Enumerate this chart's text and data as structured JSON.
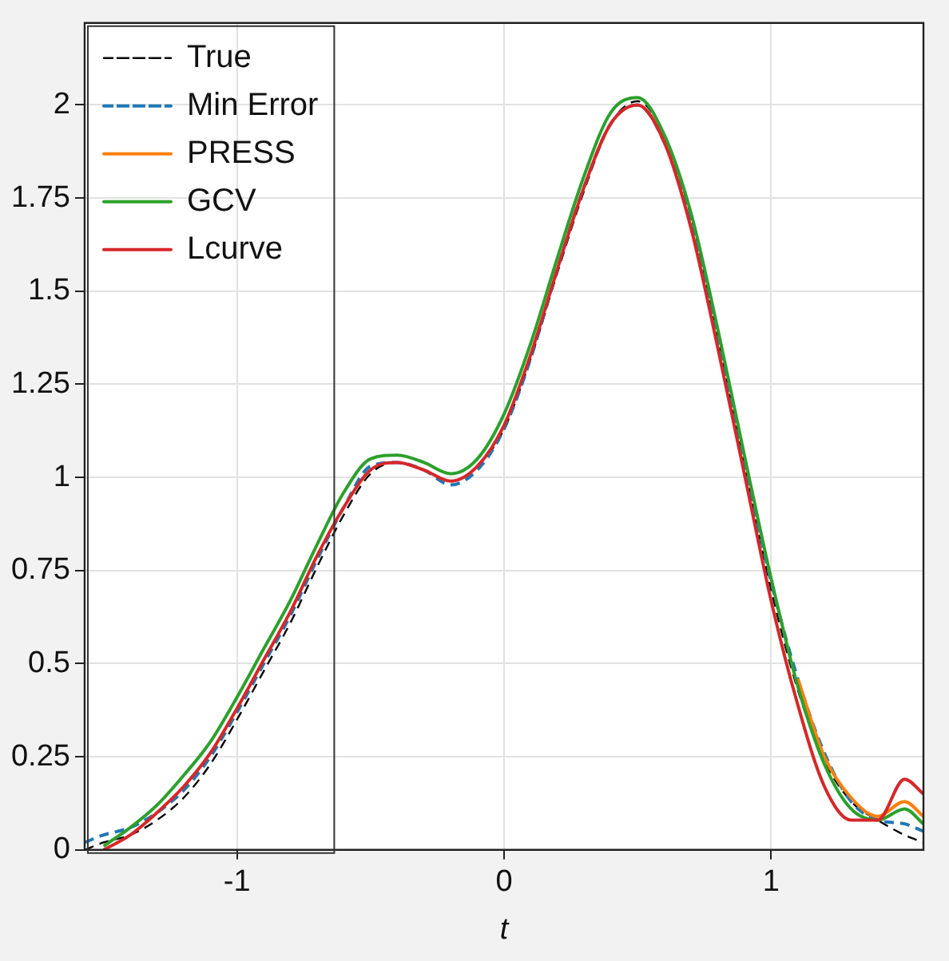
{
  "chart_data": {
    "type": "line",
    "xlabel": "t",
    "x": [
      -1.5708,
      -1.5,
      -1.4,
      -1.3,
      -1.2,
      -1.1,
      -1.0,
      -0.9,
      -0.8,
      -0.7,
      -0.6,
      -0.5,
      -0.4,
      -0.3,
      -0.2,
      -0.1,
      0.0,
      0.1,
      0.2,
      0.3,
      0.4,
      0.5,
      0.6,
      0.7,
      0.8,
      0.9,
      1.0,
      1.1,
      1.2,
      1.3,
      1.4,
      1.5,
      1.5708
    ],
    "series": [
      {
        "name": "True",
        "color": "#000000",
        "line_style": "dashed",
        "values": [
          0.0,
          0.02,
          0.04,
          0.08,
          0.14,
          0.23,
          0.35,
          0.48,
          0.61,
          0.76,
          0.9,
          1.01,
          1.04,
          1.02,
          0.99,
          1.03,
          1.13,
          1.32,
          1.55,
          1.77,
          1.95,
          2.01,
          1.92,
          1.7,
          1.38,
          1.03,
          0.7,
          0.43,
          0.24,
          0.13,
          0.08,
          0.04,
          0.02
        ]
      },
      {
        "name": "Min Error",
        "color": "#1f77b4",
        "line_style": "dashed",
        "values": [
          0.02,
          0.04,
          0.06,
          0.1,
          0.16,
          0.25,
          0.37,
          0.5,
          0.63,
          0.78,
          0.92,
          1.03,
          1.04,
          1.02,
          0.98,
          1.02,
          1.13,
          1.32,
          1.56,
          1.78,
          1.95,
          2.0,
          1.9,
          1.69,
          1.38,
          1.04,
          0.72,
          0.46,
          0.26,
          0.13,
          0.08,
          0.07,
          0.05
        ]
      },
      {
        "name": "PRESS",
        "color": "#ff7f0e",
        "values": [
          null,
          null,
          null,
          null,
          null,
          null,
          null,
          null,
          null,
          null,
          null,
          null,
          null,
          null,
          null,
          null,
          null,
          null,
          null,
          null,
          null,
          null,
          null,
          null,
          null,
          null,
          null,
          0.46,
          0.25,
          0.14,
          0.09,
          0.13,
          0.09
        ]
      },
      {
        "name": "GCV",
        "color": "#2ca02c",
        "values": [
          null,
          0.01,
          0.06,
          0.12,
          0.2,
          0.29,
          0.41,
          0.54,
          0.67,
          0.82,
          0.96,
          1.05,
          1.06,
          1.04,
          1.01,
          1.05,
          1.17,
          1.36,
          1.59,
          1.81,
          1.98,
          2.02,
          1.92,
          1.71,
          1.4,
          1.06,
          0.73,
          0.44,
          0.23,
          0.11,
          0.08,
          0.11,
          0.07
        ]
      },
      {
        "name": "Lcurve",
        "color": "#d62728",
        "values": [
          null,
          0.0,
          0.04,
          0.1,
          0.17,
          0.26,
          0.38,
          0.51,
          0.64,
          0.79,
          0.92,
          1.02,
          1.04,
          1.02,
          0.99,
          1.03,
          1.14,
          1.33,
          1.56,
          1.78,
          1.95,
          2.0,
          1.9,
          1.67,
          1.35,
          1.01,
          0.67,
          0.39,
          0.17,
          0.08,
          0.08,
          0.19,
          0.15
        ]
      }
    ],
    "xlim": [
      -1.5708,
      1.5708
    ],
    "ylim": [
      0,
      2.22
    ],
    "xticks": [
      -1,
      0,
      1
    ],
    "yticks": [
      0,
      0.25,
      0.5,
      0.75,
      1,
      1.25,
      1.5,
      1.75,
      2
    ],
    "grid": true,
    "legend": "top left"
  }
}
